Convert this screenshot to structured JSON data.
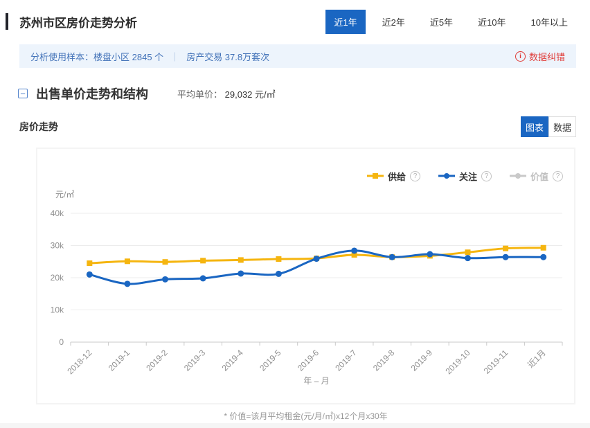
{
  "header": {
    "title": "苏州市区房价走势分析",
    "time_tabs": [
      {
        "label": "近1年",
        "active": true
      },
      {
        "label": "近2年",
        "active": false
      },
      {
        "label": "近5年",
        "active": false
      },
      {
        "label": "近10年",
        "active": false
      },
      {
        "label": "10年以上",
        "active": false
      }
    ]
  },
  "info_bar": {
    "label": "分析使用样本：",
    "sample_1": "楼盘小区 2845 个",
    "divider": "｜",
    "sample_2": "房产交易 37.8万套次",
    "error_link": "数据纠错"
  },
  "section": {
    "collapse_glyph": "−",
    "title": "出售单价走势和结构",
    "avg_label": "平均单价：",
    "avg_value": "29,032 元/㎡"
  },
  "subsection": {
    "title": "房价走势",
    "view_tabs": [
      {
        "label": "图表",
        "active": true
      },
      {
        "label": "数据",
        "active": false
      }
    ]
  },
  "legend_help_glyph": "?",
  "error_icon_glyph": "i",
  "footnote": "* 价值=该月平均租金(元/月/㎡)x12个月x30年",
  "colors": {
    "accent_blue": "#1a66c2",
    "supply_yellow": "#f5b50f",
    "attention_blue": "#1a66c2",
    "disabled_gray": "#c9c9c9",
    "error_red": "#e03c39",
    "info_bar_bg": "#edf4fc",
    "info_text_blue": "#4272b8"
  },
  "chart_data": {
    "type": "line",
    "title": "房价走势",
    "xlabel": "年 – 月",
    "ylabel": "元/㎡",
    "grid": true,
    "legend_position": "top-right",
    "ylim": [
      0,
      40000
    ],
    "yticks": [
      "0",
      "10k",
      "20k",
      "30k",
      "40k"
    ],
    "categories": [
      "2018-12",
      "2019-1",
      "2019-2",
      "2019-3",
      "2019-4",
      "2019-5",
      "2019-6",
      "2019-7",
      "2019-8",
      "2019-9",
      "2019-10",
      "2019-11",
      "近1月"
    ],
    "series": [
      {
        "key": "supply",
        "name": "供给",
        "color": "#f5b50f",
        "marker": "square",
        "values": [
          24500,
          25100,
          24900,
          25300,
          25500,
          25800,
          26000,
          27100,
          26400,
          26800,
          27900,
          29100,
          29300
        ]
      },
      {
        "key": "attention",
        "name": "关注",
        "color": "#1a66c2",
        "marker": "circle",
        "values": [
          21000,
          18100,
          19500,
          19800,
          21300,
          21200,
          25900,
          28400,
          26400,
          27300,
          26100,
          26400,
          26400
        ]
      },
      {
        "key": "value",
        "name": "价值",
        "color": "#c9c9c9",
        "marker": "circle",
        "disabled": true,
        "values": null
      }
    ]
  }
}
